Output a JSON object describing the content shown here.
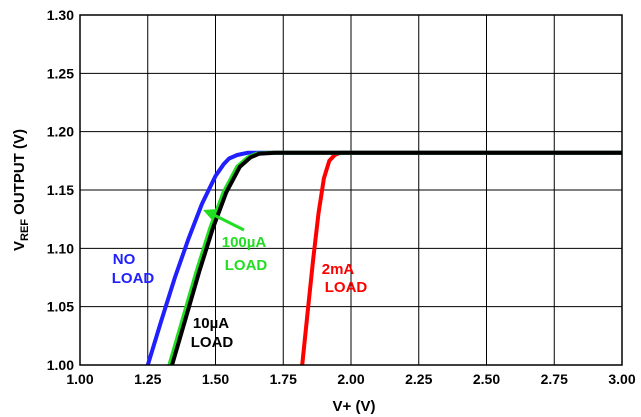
{
  "chart_data": {
    "type": "line",
    "xlabel": "V+ (V)",
    "ylabel_main": "V",
    "ylabel_sub": "REF",
    "ylabel_rest": " OUTPUT (V)",
    "xlim": [
      1.0,
      3.0
    ],
    "ylim": [
      1.0,
      1.3
    ],
    "xticks": [
      "1.00",
      "1.25",
      "1.50",
      "1.75",
      "2.00",
      "2.25",
      "2.50",
      "2.75",
      "3.00"
    ],
    "yticks": [
      "1.00",
      "1.05",
      "1.10",
      "1.15",
      "1.20",
      "1.25",
      "1.30"
    ],
    "grid": true,
    "series": [
      {
        "name": "NO LOAD",
        "color": "#1f1fff",
        "x": [
          1.25,
          1.3,
          1.35,
          1.4,
          1.45,
          1.5,
          1.53,
          1.55,
          1.58,
          1.62,
          1.68,
          3.0
        ],
        "y": [
          1.0,
          1.038,
          1.075,
          1.108,
          1.138,
          1.162,
          1.172,
          1.177,
          1.18,
          1.182,
          1.182,
          1.182
        ]
      },
      {
        "name": "100µA LOAD",
        "color": "#22dd22",
        "x": [
          1.33,
          1.38,
          1.43,
          1.48,
          1.53,
          1.58,
          1.62,
          1.65,
          1.7,
          3.0
        ],
        "y": [
          1.0,
          1.04,
          1.08,
          1.117,
          1.148,
          1.17,
          1.178,
          1.181,
          1.182,
          1.182
        ]
      },
      {
        "name": "10µA LOAD",
        "color": "#000000",
        "x": [
          1.34,
          1.39,
          1.44,
          1.49,
          1.54,
          1.59,
          1.63,
          1.66,
          1.72,
          3.0
        ],
        "y": [
          1.0,
          1.04,
          1.08,
          1.117,
          1.148,
          1.17,
          1.178,
          1.181,
          1.182,
          1.182
        ]
      },
      {
        "name": "2mA LOAD",
        "color": "#ff0000",
        "x": [
          1.82,
          1.84,
          1.86,
          1.88,
          1.9,
          1.92,
          1.94,
          1.96,
          2.0,
          3.0
        ],
        "y": [
          1.0,
          1.045,
          1.09,
          1.13,
          1.16,
          1.175,
          1.18,
          1.182,
          1.182,
          1.182
        ]
      }
    ],
    "annotations": [
      {
        "line1": "NO",
        "line2": "LOAD",
        "color": "#1f1fff"
      },
      {
        "line1": "100µA",
        "line2": "LOAD",
        "color": "#22dd22"
      },
      {
        "line1": "10µA",
        "line2": "LOAD",
        "color": "#000000"
      },
      {
        "line1": "2mA",
        "line2": "LOAD",
        "color": "#ff0000"
      }
    ]
  }
}
